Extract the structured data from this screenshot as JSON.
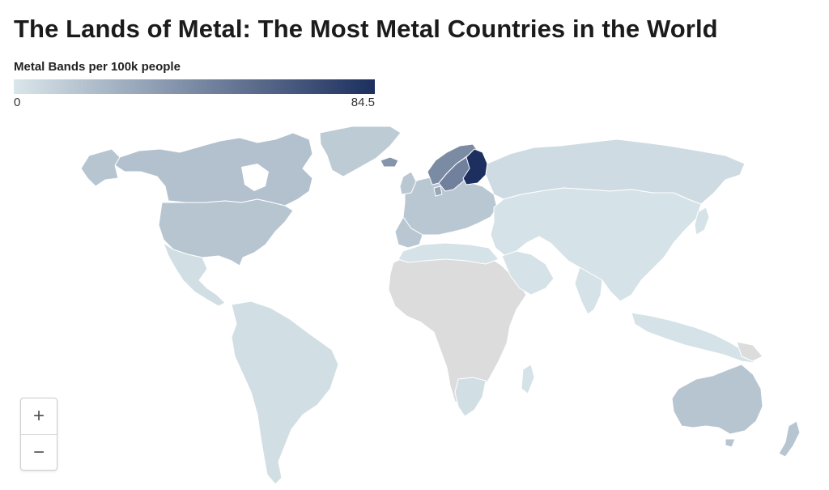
{
  "title": "The Lands of Metal: The Most Metal Countries in the World",
  "legend": {
    "label": "Metal Bands per 100k people",
    "min": "0",
    "max": "84.5",
    "min_value": 0,
    "max_value": 84.5,
    "color_low": "#d9e6ea",
    "color_high": "#1c2f5e"
  },
  "colors": {
    "no_data": "#dcdcdc",
    "border": "#ffffff",
    "background": "#ffffff"
  },
  "zoom": {
    "in_label": "+",
    "out_label": "−"
  },
  "regions": [
    {
      "name": "Finland",
      "level": 1.0
    },
    {
      "name": "Sweden",
      "level": 0.55
    },
    {
      "name": "Norway",
      "level": 0.5
    },
    {
      "name": "Iceland",
      "level": 0.45
    },
    {
      "name": "Denmark",
      "level": 0.35
    },
    {
      "name": "Canada",
      "level": 0.2
    },
    {
      "name": "United States",
      "level": 0.18
    },
    {
      "name": "Greenland",
      "level": 0.15
    },
    {
      "name": "Australia",
      "level": 0.18
    },
    {
      "name": "Europe",
      "level": 0.17
    },
    {
      "name": "Russia",
      "level": 0.06
    },
    {
      "name": "South America",
      "level": 0.04
    },
    {
      "name": "Asia",
      "level": 0.02
    },
    {
      "name": "Africa",
      "level": null
    }
  ]
}
